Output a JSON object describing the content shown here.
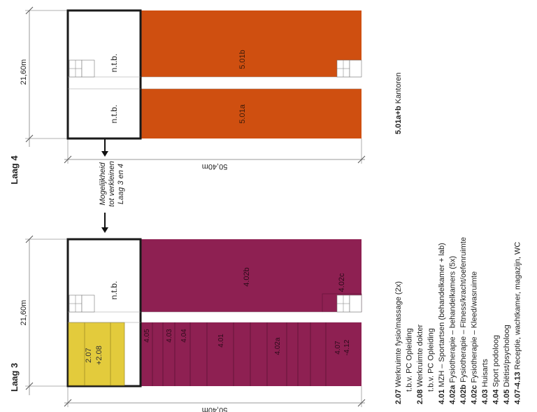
{
  "colors": {
    "orange": "#cf4f10",
    "maroon": "#8e2052",
    "yellow": "#e3cb3c",
    "outline": "#1a1a1a",
    "thin_line": "#999999"
  },
  "laag4": {
    "title": "Laag 4",
    "dim_width": "21,60m",
    "dim_length": "50,40m",
    "ntb_top": "n.t.b.",
    "ntb_bottom": "n.t.b.",
    "room_b": "5.01b",
    "room_a": "5.01a",
    "note_line1": "Mogelijkheid",
    "note_line2": "tot verkleinen",
    "note_line3": "Laag 3 en 4",
    "side_label_bold": "5.01a+b",
    "side_label_rest": " Kantoren"
  },
  "laag3": {
    "title": "Laag 3",
    "dim_width": "21,60m",
    "dim_length": "50,40m",
    "ntb": "n.t.b.",
    "room_402b": "4.02b",
    "room_402c": "4.02c",
    "room_207": "2.07",
    "room_208": "+2.08",
    "room_405": "4.05",
    "room_403": "4.03",
    "room_404": "4.04",
    "room_401": "4.01",
    "room_402a": "4.02a",
    "room_407": "4.07",
    "room_412": "-4.12"
  },
  "legend": [
    {
      "code": "2.07",
      "text": " Werkruimte fysio/massage (2x)"
    },
    {
      "code": "",
      "text": "t.b.v. PC Opleiding"
    },
    {
      "code": "2.08",
      "text": " Werkruimte dokter"
    },
    {
      "code": "",
      "text": "t.b.v. PC Opleiding"
    },
    {
      "code": "4.01",
      "text": " MZH – Sportartsen (behandelkamer + lab)"
    },
    {
      "code": "4.02a",
      "text": " Fysiotherapie – behandelkamers (5x)"
    },
    {
      "code": "4.02b",
      "text": " Fysiotherapie – Fitness/kracht/oefenruimte"
    },
    {
      "code": "4.02c",
      "text": " Fysiotherapie – Kleed/wasruimte"
    },
    {
      "code": "4.03",
      "text": " Huisarts"
    },
    {
      "code": "4.04",
      "text": " Sport podoloog"
    },
    {
      "code": "4.05",
      "text": " Diëtist/psycholoog"
    },
    {
      "code": "4.07-4.13",
      "text": " Receptie, wachtkamer, magazijn, WC"
    }
  ]
}
